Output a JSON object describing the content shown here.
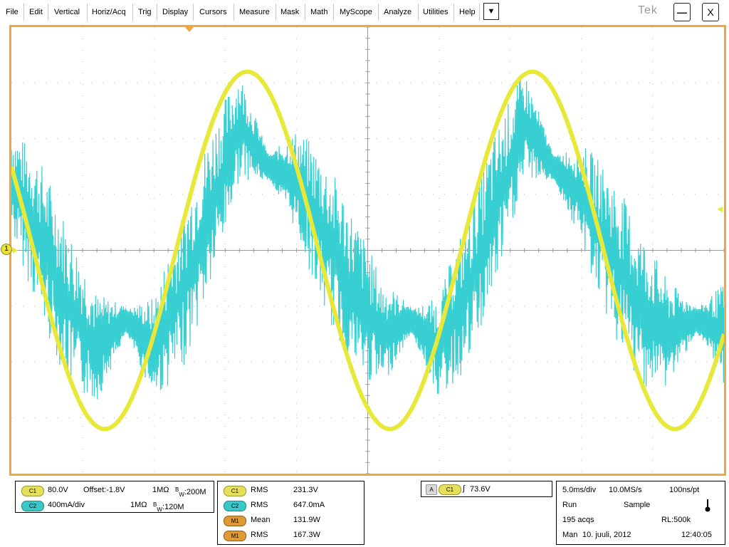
{
  "menu": {
    "items": [
      "File",
      "Edit",
      "Vertical",
      "Horiz/Acq",
      "Trig",
      "Display",
      "Cursors",
      "Measure",
      "Mask",
      "Math",
      "MyScope",
      "Analyze",
      "Utilities",
      "Help"
    ],
    "dropdown_glyph": "▼",
    "logo": "Tek",
    "minimize_glyph": "—",
    "close_glyph": "X"
  },
  "display": {
    "ch1_marker": "1",
    "colors": {
      "ch1": "#e8e838",
      "ch2": "#38cfd2",
      "frame": "#f2a640",
      "grid": "#b9b9b9"
    }
  },
  "chart_data": {
    "type": "line",
    "x_unit": "ms",
    "xlim": [
      0,
      50
    ],
    "series": [
      {
        "name": "C1",
        "unit": "V",
        "ylim": [
          -400,
          400
        ],
        "amplitude": 320,
        "period_ms": 20,
        "x": [
          0,
          2.5,
          5,
          7.5,
          10,
          12.5,
          15,
          17.5,
          20,
          22.5,
          25,
          27.5,
          30,
          32.5,
          35,
          37.5,
          40,
          42.5,
          45,
          47.5,
          50
        ],
        "y": [
          150,
          -98,
          -286,
          -318,
          -150,
          98,
          286,
          318,
          150,
          -98,
          -286,
          -318,
          -150,
          98,
          286,
          318,
          150,
          -98,
          -286,
          -318,
          -150
        ]
      },
      {
        "name": "C2",
        "unit": "A",
        "ylim": [
          -1.6,
          1.6
        ],
        "x": [
          0,
          2,
          4,
          6,
          8,
          10,
          12,
          14,
          16,
          18,
          20,
          22,
          24,
          26,
          28,
          30,
          32,
          34,
          36,
          38,
          40,
          42,
          44,
          46,
          48,
          50
        ],
        "y": [
          0.5,
          0.1,
          -0.4,
          -0.7,
          -0.5,
          -0.7,
          -0.3,
          0.3,
          0.9,
          0.6,
          0.5,
          0.1,
          -0.3,
          -0.6,
          -0.5,
          -0.7,
          -0.3,
          0.3,
          0.9,
          0.6,
          0.4,
          0.0,
          -0.4,
          -0.6,
          -0.5,
          -0.6
        ]
      }
    ]
  },
  "channel_panel": {
    "ch1": {
      "badge": "C1",
      "scale": "80.0V",
      "offset": "Offset:-1.8V",
      "impedance": "1MΩ",
      "bw_prefix": "B",
      "bw_sub": "W",
      "bw_value": ":200M"
    },
    "ch2": {
      "badge": "C2",
      "scale": "400mA/div",
      "impedance": "1MΩ",
      "bw_prefix": "B",
      "bw_sub": "W",
      "bw_value": ":120M"
    }
  },
  "measurements": [
    {
      "badge": "C1",
      "type": "RMS",
      "value": "231.3V"
    },
    {
      "badge": "C2",
      "type": "RMS",
      "value": "647.0mA"
    },
    {
      "badge": "M1",
      "type": "Mean",
      "value": "131.9W"
    },
    {
      "badge": "M1",
      "type": "RMS",
      "value": "167.3W"
    }
  ],
  "trigger": {
    "badge_a": "A",
    "badge": "C1",
    "slope_glyph": "∫",
    "level": "73.6V"
  },
  "acquisition": {
    "time_div": "5.0ms/div",
    "sample_rate": "10.0MS/s",
    "resolution": "100ns/pt",
    "run_state": "Run",
    "mode": "Sample",
    "acqs": "195 acqs",
    "record_length": "RL:500k",
    "day": "Man",
    "date": "10. juuli, 2012",
    "time": "12:40:05"
  }
}
